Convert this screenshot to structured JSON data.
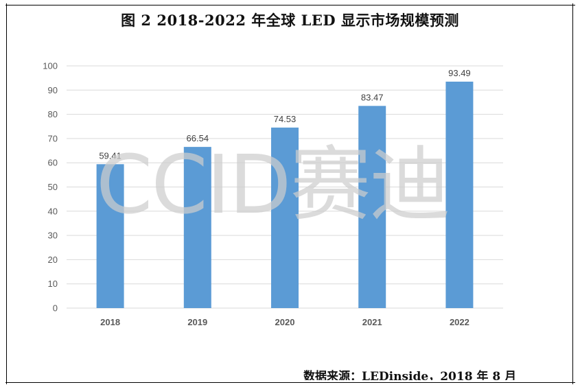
{
  "title": "图 2   2018-2022 年全球 LED 显示市场规模预测",
  "source": "数据来源：LEDinside，2018 年 8 月",
  "watermark": "CCID赛迪",
  "colors": {
    "bar": "#5B9BD5",
    "grid": "#D9D9D9",
    "axis_text": "#595959",
    "label_text": "#404040"
  },
  "chart_data": {
    "type": "bar",
    "title": "2018-2022 年全球 LED 显示市场规模预测",
    "categories": [
      "2018",
      "2019",
      "2020",
      "2021",
      "2022"
    ],
    "values": [
      59.41,
      66.54,
      74.53,
      83.47,
      93.49
    ],
    "value_labels": [
      "59.41",
      "66.54",
      "74.53",
      "83.47",
      "93.49"
    ],
    "xlabel": "",
    "ylabel": "",
    "ylim": [
      0,
      100
    ],
    "yticks": [
      "0",
      "10",
      "20",
      "30",
      "40",
      "50",
      "60",
      "70",
      "80",
      "90",
      "100"
    ],
    "grid": true,
    "legend": "none"
  }
}
